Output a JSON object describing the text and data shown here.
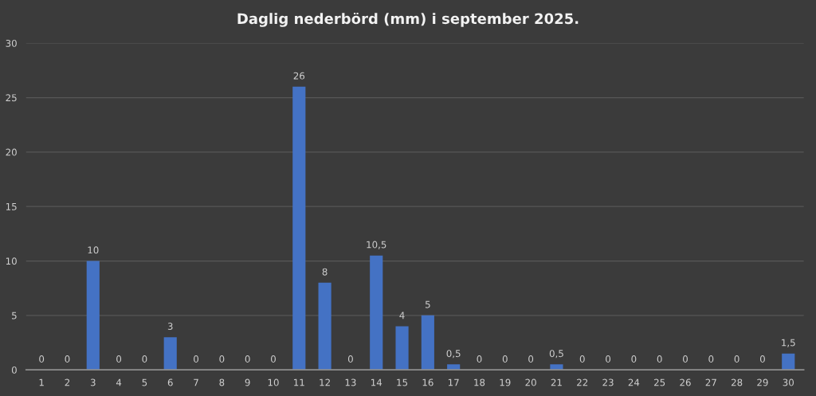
{
  "chart_data": {
    "type": "bar",
    "title": "Daglig nederbörd (mm) i september 2025.",
    "categories": [
      "1",
      "2",
      "3",
      "4",
      "5",
      "6",
      "7",
      "8",
      "9",
      "10",
      "11",
      "12",
      "13",
      "14",
      "15",
      "16",
      "17",
      "18",
      "19",
      "20",
      "21",
      "22",
      "23",
      "24",
      "25",
      "26",
      "27",
      "28",
      "29",
      "30"
    ],
    "values": [
      0,
      0,
      10,
      0,
      0,
      3,
      0,
      0,
      0,
      0,
      26,
      8,
      0,
      10.5,
      4,
      5,
      0.5,
      0,
      0,
      0,
      0.5,
      0,
      0,
      0,
      0,
      0,
      0,
      0,
      0,
      1.5
    ],
    "value_labels": [
      "0",
      "0",
      "10",
      "0",
      "0",
      "3",
      "0",
      "0",
      "0",
      "0",
      "26",
      "8",
      "0",
      "10,5",
      "4",
      "5",
      "0,5",
      "0",
      "0",
      "0",
      "0,5",
      "0",
      "0",
      "0",
      "0",
      "0",
      "0",
      "0",
      "0",
      "1,5"
    ],
    "color": "#4472c4",
    "ylim": [
      0,
      30
    ],
    "yticks": [
      0,
      5,
      10,
      15,
      20,
      25,
      30
    ],
    "grid": "y",
    "legend": false
  }
}
